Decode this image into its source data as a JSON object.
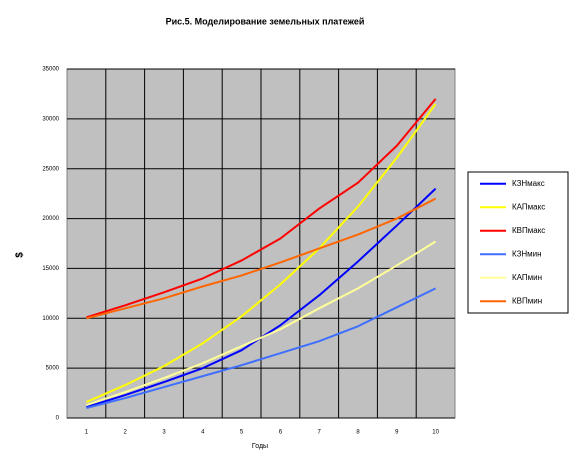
{
  "chart_data": {
    "type": "line",
    "title": "Рис.5. Моделирование земельных платежей",
    "xlabel": "Годы",
    "ylabel": "$",
    "categories": [
      "1",
      "2",
      "3",
      "4",
      "5",
      "6",
      "7",
      "8",
      "9",
      "10"
    ],
    "series": [
      {
        "name": "КЗНмакс",
        "color": "#0000ff",
        "values": [
          1100,
          2300,
          3600,
          5000,
          6800,
          9300,
          12300,
          15700,
          19300,
          23000
        ]
      },
      {
        "name": "КАПмакс",
        "color": "#ffff00",
        "values": [
          1600,
          3300,
          5200,
          7500,
          10200,
          13400,
          17000,
          21200,
          26100,
          31500
        ]
      },
      {
        "name": "КВПмакс",
        "color": "#ff0000",
        "values": [
          10100,
          11300,
          12600,
          14000,
          15800,
          18000,
          21000,
          23600,
          27300,
          32000
        ]
      },
      {
        "name": "КЗНмин",
        "color": "#3f6fff",
        "values": [
          1000,
          2000,
          3100,
          4200,
          5300,
          6500,
          7700,
          9200,
          11100,
          13000
        ]
      },
      {
        "name": "КАПмин",
        "color": "#ffff99",
        "values": [
          1300,
          2600,
          4000,
          5500,
          7200,
          8900,
          11000,
          13000,
          15300,
          17700
        ]
      },
      {
        "name": "КВПмин",
        "color": "#ff6600",
        "values": [
          10000,
          11000,
          12000,
          13200,
          14300,
          15600,
          17000,
          18400,
          20000,
          22000
        ]
      }
    ],
    "ylim": [
      0,
      35000
    ],
    "yticks": [
      0,
      5000,
      10000,
      15000,
      20000,
      25000,
      30000,
      35000
    ],
    "grid": true,
    "legend": "right"
  }
}
